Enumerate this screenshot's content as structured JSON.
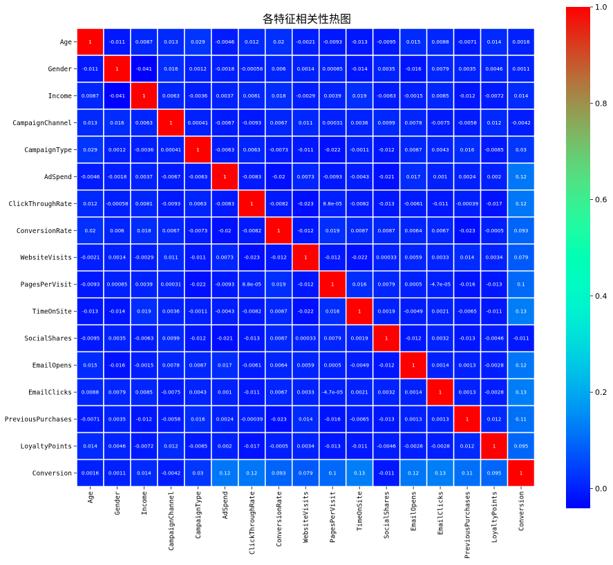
{
  "chart_data": {
    "type": "heatmap",
    "title": "各特征相关性热图",
    "labels": [
      "Age",
      "Gender",
      "Income",
      "CampaignChannel",
      "CampaignType",
      "AdSpend",
      "ClickThroughRate",
      "ConversionRate",
      "WebsiteVisits",
      "PagesPerVisit",
      "TimeOnSite",
      "SocialShares",
      "EmailOpens",
      "EmailClicks",
      "PreviousPurchases",
      "LoyaltyPoints",
      "Conversion"
    ],
    "values": [
      [
        1,
        -0.011,
        0.0087,
        0.013,
        0.029,
        -0.0046,
        0.012,
        0.02,
        -0.0021,
        -0.0093,
        -0.013,
        -0.0095,
        0.015,
        0.0088,
        -0.0071,
        0.014,
        0.0016
      ],
      [
        -0.011,
        1,
        -0.041,
        0.016,
        0.0012,
        -0.0018,
        -0.00058,
        0.006,
        0.0014,
        0.00085,
        -0.014,
        0.0035,
        -0.016,
        0.0079,
        0.0035,
        0.0046,
        0.0011
      ],
      [
        0.0087,
        -0.041,
        1,
        0.0063,
        -0.0036,
        0.0037,
        0.0081,
        0.018,
        -0.0029,
        0.0039,
        0.019,
        -0.0063,
        -0.0015,
        0.0085,
        -0.012,
        -0.0072,
        0.014
      ],
      [
        0.013,
        0.016,
        0.0063,
        1,
        0.00041,
        -0.0067,
        -0.0093,
        0.0067,
        0.011,
        0.00031,
        0.0036,
        0.0099,
        0.0078,
        -0.0075,
        -0.0058,
        0.012,
        -0.0042
      ],
      [
        0.029,
        0.0012,
        -0.0036,
        0.00041,
        1,
        -0.0063,
        0.0063,
        -0.0073,
        -0.011,
        -0.022,
        -0.0011,
        -0.012,
        0.0087,
        0.0043,
        0.016,
        -0.0085,
        0.03
      ],
      [
        -0.0046,
        -0.0018,
        0.0037,
        -0.0067,
        -0.0063,
        1,
        -0.0083,
        -0.02,
        0.0073,
        -0.0093,
        -0.0043,
        -0.021,
        0.017,
        0.001,
        0.0024,
        0.002,
        0.12
      ],
      [
        0.012,
        -0.00058,
        0.0081,
        -0.0093,
        0.0063,
        -0.0083,
        1,
        -0.0082,
        -0.023,
        8.8e-05,
        -0.0082,
        -0.013,
        -0.0061,
        -0.011,
        -0.00039,
        -0.017,
        0.12
      ],
      [
        0.02,
        0.006,
        0.018,
        0.0067,
        -0.0073,
        -0.02,
        -0.0082,
        1,
        -0.012,
        0.019,
        0.0087,
        0.0087,
        0.0064,
        0.0067,
        -0.023,
        -0.0005,
        0.093
      ],
      [
        -0.0021,
        0.0014,
        -0.0029,
        0.011,
        -0.011,
        0.0073,
        -0.023,
        -0.012,
        1,
        -0.012,
        -0.022,
        0.00033,
        0.0059,
        0.0033,
        0.014,
        0.0034,
        0.079
      ],
      [
        -0.0093,
        0.00085,
        0.0039,
        0.00031,
        -0.022,
        -0.0093,
        8.8e-05,
        0.019,
        -0.012,
        1,
        0.016,
        0.0079,
        0.0005,
        -4.7e-05,
        -0.016,
        -0.013,
        0.1
      ],
      [
        -0.013,
        -0.014,
        0.019,
        0.0036,
        -0.0011,
        -0.0043,
        -0.0082,
        0.0087,
        -0.022,
        0.016,
        1,
        0.0019,
        -0.0049,
        0.0021,
        -0.0065,
        -0.011,
        0.13
      ],
      [
        -0.0095,
        0.0035,
        -0.0063,
        0.0099,
        -0.012,
        -0.021,
        -0.013,
        0.0087,
        0.00033,
        0.0079,
        0.0019,
        1,
        -0.012,
        0.0032,
        -0.013,
        -0.0046,
        -0.011
      ],
      [
        0.015,
        -0.016,
        -0.0015,
        0.0078,
        0.0087,
        0.017,
        -0.0061,
        0.0064,
        0.0059,
        0.0005,
        -0.0049,
        -0.012,
        1,
        0.0014,
        0.0013,
        -0.0028,
        0.12
      ],
      [
        0.0088,
        0.0079,
        0.0085,
        -0.0075,
        0.0043,
        0.001,
        -0.011,
        0.0067,
        0.0033,
        -4.7e-05,
        0.0021,
        0.0032,
        0.0014,
        1,
        0.0013,
        -0.0028,
        0.13
      ],
      [
        -0.0071,
        0.0035,
        -0.012,
        -0.0058,
        0.016,
        0.0024,
        -0.00039,
        -0.023,
        0.014,
        -0.016,
        -0.0065,
        -0.013,
        0.0013,
        0.0013,
        1,
        0.012,
        0.11
      ],
      [
        0.014,
        0.0046,
        -0.0072,
        0.012,
        -0.0085,
        0.002,
        -0.017,
        -0.0005,
        0.0034,
        -0.013,
        -0.011,
        -0.0046,
        -0.0028,
        -0.0028,
        0.012,
        1,
        0.095
      ],
      [
        0.0016,
        0.0011,
        0.014,
        -0.0042,
        0.03,
        0.12,
        0.12,
        0.093,
        0.079,
        0.1,
        0.13,
        -0.011,
        0.12,
        0.13,
        0.11,
        0.095,
        1
      ]
    ],
    "value_labels": [
      [
        "1",
        "-0.011",
        "0.0087",
        "0.013",
        "0.029",
        "-0.0046",
        "0.012",
        "0.02",
        "-0.0021",
        "-0.0093",
        "-0.013",
        "-0.0095",
        "0.015",
        "0.0088",
        "-0.0071",
        "0.014",
        "0.0016"
      ],
      [
        "-0.011",
        "1",
        "-0.041",
        "0.016",
        "0.0012",
        "-0.0018",
        "-0.00058",
        "0.006",
        "0.0014",
        "0.00085",
        "-0.014",
        "0.0035",
        "-0.016",
        "0.0079",
        "0.0035",
        "0.0046",
        "0.0011"
      ],
      [
        "0.0087",
        "-0.041",
        "1",
        "0.0063",
        "-0.0036",
        "0.0037",
        "0.0081",
        "0.018",
        "-0.0029",
        "0.0039",
        "0.019",
        "-0.0063",
        "-0.0015",
        "0.0085",
        "-0.012",
        "-0.0072",
        "0.014"
      ],
      [
        "0.013",
        "0.016",
        "0.0063",
        "1",
        "0.00041",
        "-0.0067",
        "-0.0093",
        "0.0067",
        "0.011",
        "0.00031",
        "0.0036",
        "0.0099",
        "0.0078",
        "-0.0075",
        "-0.0058",
        "0.012",
        "-0.0042"
      ],
      [
        "0.029",
        "0.0012",
        "-0.0036",
        "0.00041",
        "1",
        "-0.0063",
        "0.0063",
        "-0.0073",
        "-0.011",
        "-0.022",
        "-0.0011",
        "-0.012",
        "0.0087",
        "0.0043",
        "0.016",
        "-0.0085",
        "0.03"
      ],
      [
        "-0.0046",
        "-0.0018",
        "0.0037",
        "-0.0067",
        "-0.0063",
        "1",
        "-0.0083",
        "-0.02",
        "0.0073",
        "-0.0093",
        "-0.0043",
        "-0.021",
        "0.017",
        "0.001",
        "0.0024",
        "0.002",
        "0.12"
      ],
      [
        "0.012",
        "-0.00058",
        "0.0081",
        "-0.0093",
        "0.0063",
        "-0.0083",
        "1",
        "-0.0082",
        "-0.023",
        "8.8e-05",
        "-0.0082",
        "-0.013",
        "-0.0061",
        "-0.011",
        "-0.00039",
        "-0.017",
        "0.12"
      ],
      [
        "0.02",
        "0.006",
        "0.018",
        "0.0067",
        "-0.0073",
        "-0.02",
        "-0.0082",
        "1",
        "-0.012",
        "0.019",
        "0.0087",
        "0.0087",
        "0.0064",
        "0.0067",
        "-0.023",
        "-0.0005",
        "0.093"
      ],
      [
        "-0.0021",
        "0.0014",
        "-0.0029",
        "0.011",
        "-0.011",
        "0.0073",
        "-0.023",
        "-0.012",
        "1",
        "-0.012",
        "-0.022",
        "0.00033",
        "0.0059",
        "0.0033",
        "0.014",
        "0.0034",
        "0.079"
      ],
      [
        "-0.0093",
        "0.00085",
        "0.0039",
        "0.00031",
        "-0.022",
        "-0.0093",
        "8.8e-05",
        "0.019",
        "-0.012",
        "1",
        "0.016",
        "0.0079",
        "0.0005",
        "-4.7e-05",
        "-0.016",
        "-0.013",
        "0.1"
      ],
      [
        "-0.013",
        "-0.014",
        "0.019",
        "0.0036",
        "-0.0011",
        "-0.0043",
        "-0.0082",
        "0.0087",
        "-0.022",
        "0.016",
        "1",
        "0.0019",
        "-0.0049",
        "0.0021",
        "-0.0065",
        "-0.011",
        "0.13"
      ],
      [
        "-0.0095",
        "0.0035",
        "-0.0063",
        "0.0099",
        "-0.012",
        "-0.021",
        "-0.013",
        "0.0087",
        "0.00033",
        "0.0079",
        "0.0019",
        "1",
        "-0.012",
        "0.0032",
        "-0.013",
        "-0.0046",
        "-0.011"
      ],
      [
        "0.015",
        "-0.016",
        "-0.0015",
        "0.0078",
        "0.0087",
        "0.017",
        "-0.0061",
        "0.0064",
        "0.0059",
        "0.0005",
        "-0.0049",
        "-0.012",
        "1",
        "0.0014",
        "0.0013",
        "-0.0028",
        "0.12"
      ],
      [
        "0.0088",
        "0.0079",
        "0.0085",
        "-0.0075",
        "0.0043",
        "0.001",
        "-0.011",
        "0.0067",
        "0.0033",
        "-4.7e-05",
        "0.0021",
        "0.0032",
        "0.0014",
        "1",
        "0.0013",
        "-0.0028",
        "0.13"
      ],
      [
        "-0.0071",
        "0.0035",
        "-0.012",
        "-0.0058",
        "0.016",
        "0.0024",
        "-0.00039",
        "-0.023",
        "0.014",
        "-0.016",
        "-0.0065",
        "-0.013",
        "0.0013",
        "0.0013",
        "1",
        "0.012",
        "0.11"
      ],
      [
        "0.014",
        "0.0046",
        "-0.0072",
        "0.012",
        "-0.0085",
        "0.002",
        "-0.017",
        "-0.0005",
        "0.0034",
        "-0.013",
        "-0.011",
        "-0.0046",
        "-0.0028",
        "-0.0028",
        "0.012",
        "1",
        "0.095"
      ],
      [
        "0.0016",
        "0.0011",
        "0.014",
        "-0.0042",
        "0.03",
        "0.12",
        "0.12",
        "0.093",
        "0.079",
        "0.1",
        "0.13",
        "-0.011",
        "0.12",
        "0.13",
        "0.11",
        "0.095",
        "1"
      ]
    ],
    "colormap": "rainbow",
    "vmin": -0.041,
    "vmax": 1,
    "colorbar_ticks": [
      0.0,
      0.2,
      0.4,
      0.6,
      0.8,
      1.0
    ],
    "colorbar_tick_labels": [
      "0.0",
      "0.2",
      "0.4",
      "0.6",
      "0.8",
      "1.0"
    ],
    "annotations": true,
    "cell_border_color": "#ffffff",
    "xlabel": "",
    "ylabel": ""
  }
}
